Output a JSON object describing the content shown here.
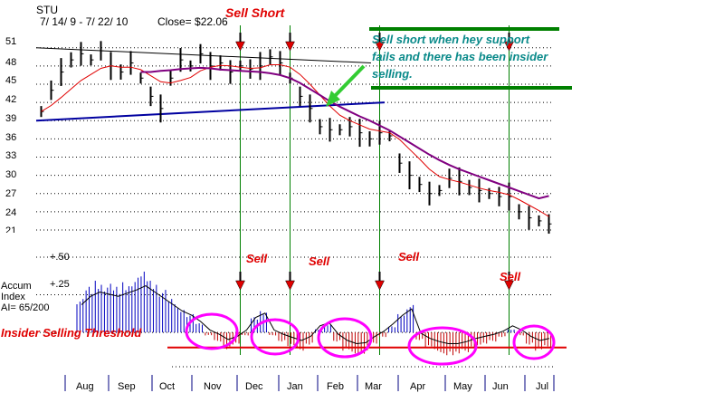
{
  "header": {
    "ticker": "STU",
    "date_range": "7/ 14/ 9 -  7/ 22/ 10",
    "close": "Close= $22.06"
  },
  "annotation": {
    "sell_short_title": "Sell Short",
    "note_line1": "Sell short when hey support",
    "note_line2": "fails and there has been insider",
    "note_line3": "selling.",
    "threshold_label": "Insider Selling Threshold"
  },
  "indicator": {
    "label_accum": "Accum",
    "label_index": "Index",
    "label_ai": "AI= 65/200",
    "tick_top": "+.50",
    "tick_mid": "+.25"
  },
  "sell_labels": [
    "Sell",
    "Sell",
    "Sell",
    "Sell"
  ],
  "colors": {
    "price_bars": "#000000",
    "ma_short": "#e00000",
    "ma_long": "#800080",
    "support_line": "#0000a0",
    "resistance_line": "#000000",
    "signal_line": "#008000",
    "accum_positive": "#0000c0",
    "accum_negative": "#c00000",
    "threshold": "#e00000",
    "circles": "#ff00ff",
    "note_text": "#0a8a8a",
    "arrow": "#33cc33"
  },
  "chart_data": [
    {
      "type": "line",
      "title": "STU  7/ 14/ 9 -  7/ 22/ 10  Close= $22.06",
      "y_ticks": [
        "51",
        "48",
        "45",
        "42",
        "39",
        "36",
        "33",
        "30",
        "27",
        "24",
        "21"
      ],
      "ylim": [
        21,
        52
      ],
      "months": [
        "Aug",
        "Sep",
        "Oct",
        "Nov",
        "Dec",
        "Jan",
        "Feb",
        "Mar",
        "Apr",
        "May",
        "Jun",
        "Jul"
      ],
      "grid": "horizontal dotted",
      "series": [
        {
          "values": [
            40.5,
            44,
            47,
            49,
            50,
            49,
            50.5,
            48,
            47,
            48.5,
            46,
            43,
            41,
            46,
            49,
            48,
            50,
            48,
            48.5,
            47,
            48,
            47.5,
            48,
            49.5,
            48.5,
            46,
            43,
            41,
            38,
            37.5,
            37.5,
            38,
            37,
            36,
            37,
            36.5,
            32,
            30,
            28.5,
            27,
            27.5,
            29.5,
            29,
            28,
            27.5,
            27,
            26.5,
            26.5,
            24,
            23,
            22.5,
            22
          ]
        },
        {
          "values": [
            40.5,
            41.5,
            42.8,
            44.2,
            45.6,
            46.6,
            47.6,
            48,
            47.8,
            47.8,
            47.4,
            46.4,
            45.4,
            45.2,
            45.6,
            46.1,
            47.2,
            47.8,
            48.1,
            48,
            47.8,
            47.6,
            47.7,
            48.2,
            48.2,
            47.8,
            46.6,
            45,
            43.2,
            41.4,
            39.9,
            39,
            38.3,
            37.6,
            37.3,
            37,
            35.9,
            34.3,
            32.7,
            31,
            29.8,
            29.3,
            28.9,
            28.4,
            27.9,
            27.5,
            27.2,
            26.8,
            26,
            25.1,
            24.2,
            23.2
          ]
        },
        {
          "values": [
            null,
            null,
            null,
            null,
            null,
            null,
            null,
            null,
            null,
            null,
            47,
            47,
            47.2,
            47.3,
            47.5,
            47.6,
            47.7,
            47.6,
            47.4,
            47.3,
            47.2,
            47.1,
            47,
            46.8,
            46.5,
            46,
            45.2,
            44.2,
            43.2,
            42.2,
            41.3,
            40.5,
            39.7,
            39,
            38.2,
            37.4,
            36.4,
            35.4,
            34.4,
            33.4,
            32.5,
            31.7,
            31,
            30.4,
            29.8,
            29.2,
            28.6,
            28,
            27.4,
            26.8,
            26.2,
            26.6
          ]
        }
      ],
      "support_line": {
        "start": 39,
        "end": 42
      },
      "resistance_line": {
        "start": 51,
        "end": 48.5
      },
      "signal_weeks": [
        20,
        25,
        34,
        47
      ]
    },
    {
      "type": "bar",
      "y_ticks": [
        "+.50",
        "+.25"
      ],
      "ylim": [
        -0.15,
        0.5
      ],
      "threshold": -0.1,
      "values": [
        0.22,
        0.3,
        0.34,
        0.32,
        0.3,
        0.33,
        0.36,
        0.4,
        0.34,
        0.28,
        0.22,
        0.16,
        0.12,
        0.06,
        -0.02,
        -0.06,
        -0.11,
        -0.08,
        -0.02,
        0.1,
        0.14,
        -0.02,
        -0.06,
        -0.09,
        -0.12,
        -0.08,
        0.02,
        0.05,
        -0.06,
        -0.12,
        -0.15,
        -0.14,
        -0.08,
        -0.03,
        0.04,
        0.12,
        0.18,
        -0.05,
        -0.1,
        -0.13,
        -0.15,
        -0.15,
        -0.13,
        -0.1,
        -0.08,
        -0.06,
        -0.03,
        0.02,
        -0.02,
        -0.08,
        -0.12,
        -0.1
      ]
    }
  ]
}
